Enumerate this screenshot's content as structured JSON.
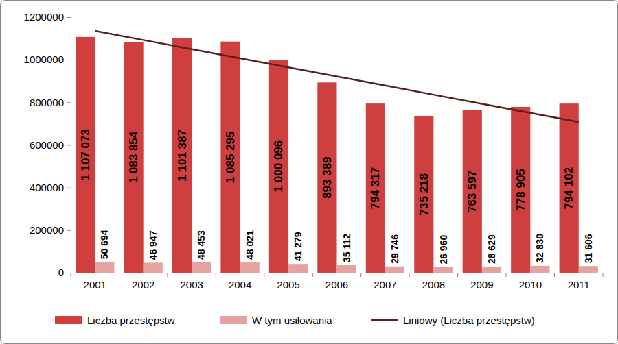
{
  "chart_data": {
    "type": "bar",
    "categories": [
      "2001",
      "2002",
      "2003",
      "2004",
      "2005",
      "2006",
      "2007",
      "2008",
      "2009",
      "2010",
      "2011"
    ],
    "series": [
      {
        "name": "Liczba przestępstw",
        "color": "#cf3f3f",
        "values": [
          1107073,
          1083854,
          1101387,
          1085295,
          1000096,
          893389,
          794317,
          735218,
          763597,
          778905,
          794102
        ],
        "value_labels": [
          "1 107 073",
          "1 083 854",
          "1 101 387",
          "1 085 295",
          "1 000 096",
          "893 389",
          "794 317",
          "735 218",
          "763 597",
          "778 905",
          "794 102"
        ]
      },
      {
        "name": "W tym usiłowania",
        "color": "#e6a1a1",
        "values": [
          50694,
          46947,
          48453,
          48021,
          41279,
          35112,
          29746,
          26960,
          28629,
          32830,
          31606
        ],
        "value_labels": [
          "50 694",
          "46 947",
          "48 453",
          "48 021",
          "41 279",
          "35 112",
          "29 746",
          "26 960",
          "28 629",
          "32 830",
          "31 606"
        ]
      },
      {
        "name": "Liniowy (Liczba przestępstw)",
        "type": "line",
        "color": "#5c1f1f",
        "line_style": "solid",
        "values": [
          1135382,
          1092619,
          1049856,
          1007093,
          964330,
          921567,
          878804,
          836041,
          793278,
          750515,
          707752
        ]
      }
    ],
    "ylim": [
      0,
      1200000
    ],
    "yticks": [
      0,
      200000,
      400000,
      600000,
      800000,
      1000000,
      1200000
    ],
    "grid": false,
    "legend": "bottom",
    "data_labels": true
  }
}
